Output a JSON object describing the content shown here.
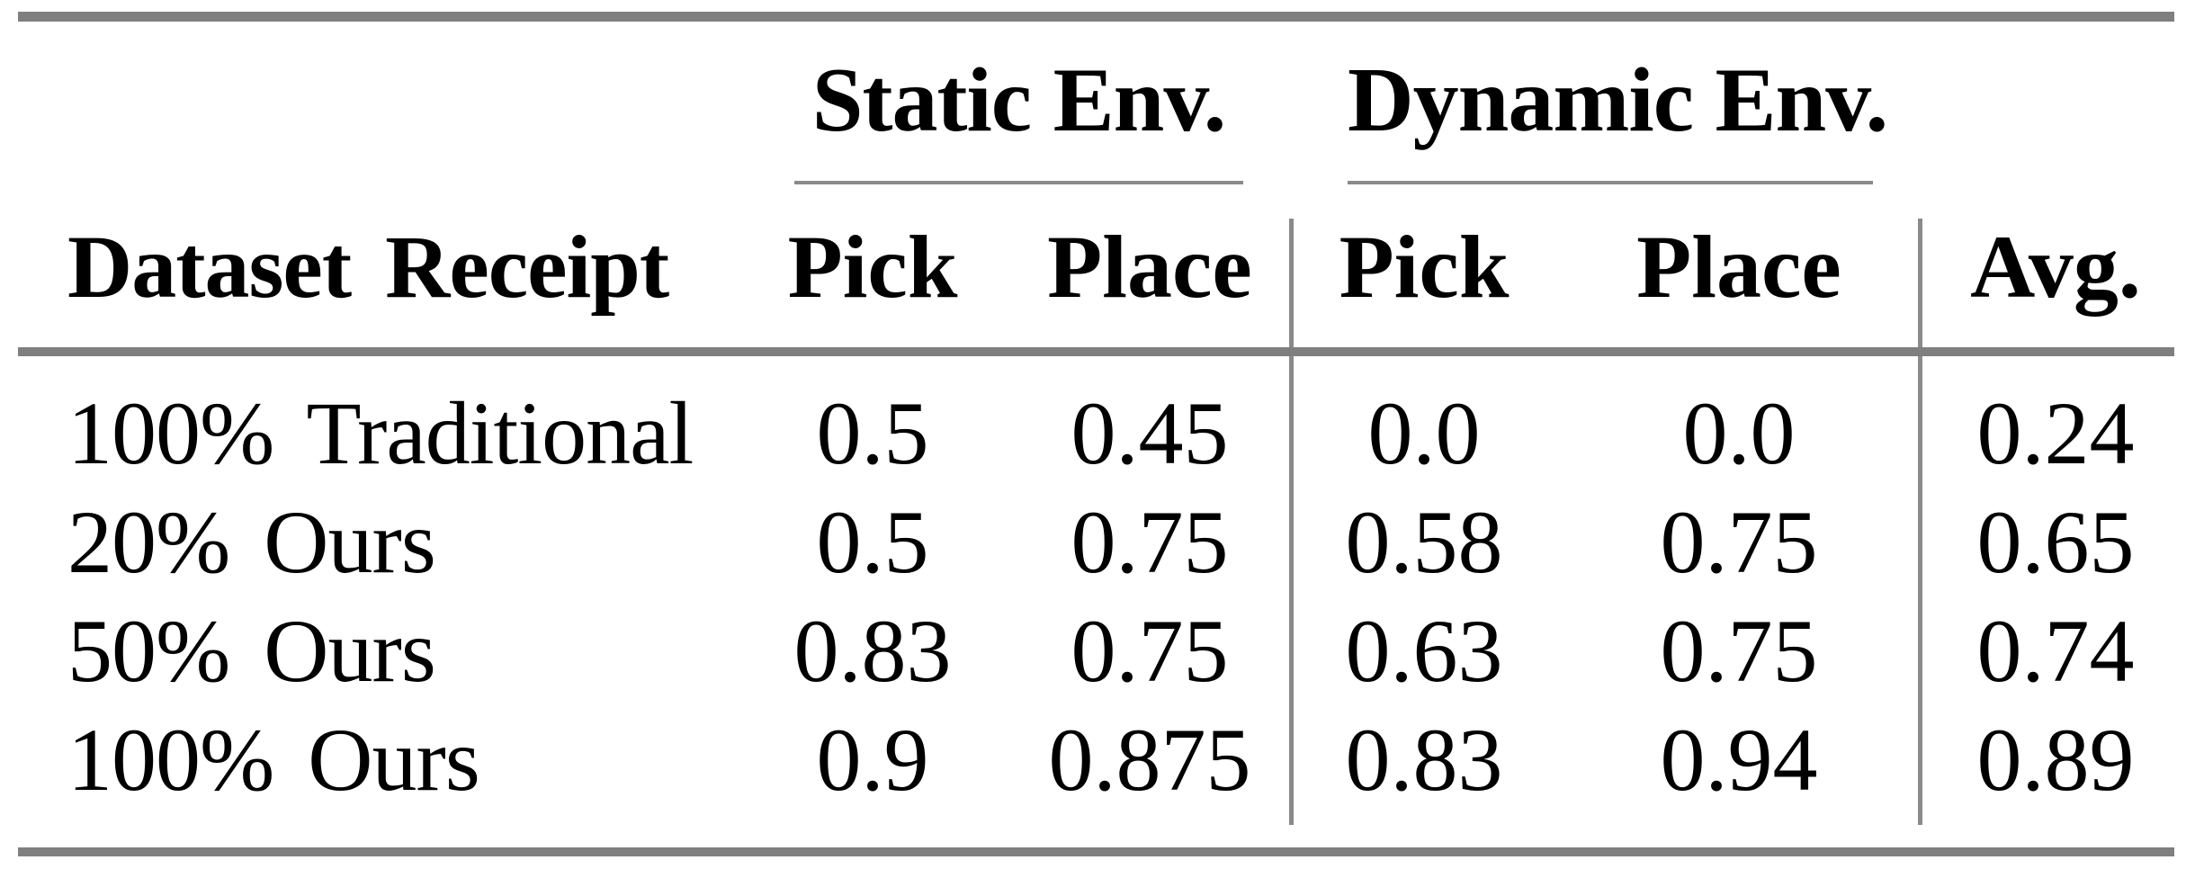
{
  "figure": {
    "kind": "paper-results-table"
  },
  "colors": {
    "background": "#ffffff",
    "text": "#000000",
    "thick_rule": "#7f7f7f",
    "thin_rule": "#8a8a8a"
  },
  "table": {
    "column_groups": [
      {
        "label": "Static Env."
      },
      {
        "label": "Dynamic Env."
      }
    ],
    "headers": {
      "dataset": "Dataset Receipt",
      "static_pick": "Pick",
      "static_place": "Place",
      "dynamic_pick": "Pick",
      "dynamic_place": "Place",
      "avg": "Avg."
    },
    "rows": [
      {
        "label": "100% Traditional",
        "static_pick": "0.5",
        "static_place": "0.45",
        "dynamic_pick": "0.0",
        "dynamic_place": "0.0",
        "avg": "0.24"
      },
      {
        "label": "20% Ours",
        "static_pick": "0.5",
        "static_place": "0.75",
        "dynamic_pick": "0.58",
        "dynamic_place": "0.75",
        "avg": "0.65"
      },
      {
        "label": "50% Ours",
        "static_pick": "0.83",
        "static_place": "0.75",
        "dynamic_pick": "0.63",
        "dynamic_place": "0.75",
        "avg": "0.74"
      },
      {
        "label": "100% Ours",
        "static_pick": "0.9",
        "static_place": "0.875",
        "dynamic_pick": "0.83",
        "dynamic_place": "0.94",
        "avg": "0.89"
      }
    ]
  }
}
